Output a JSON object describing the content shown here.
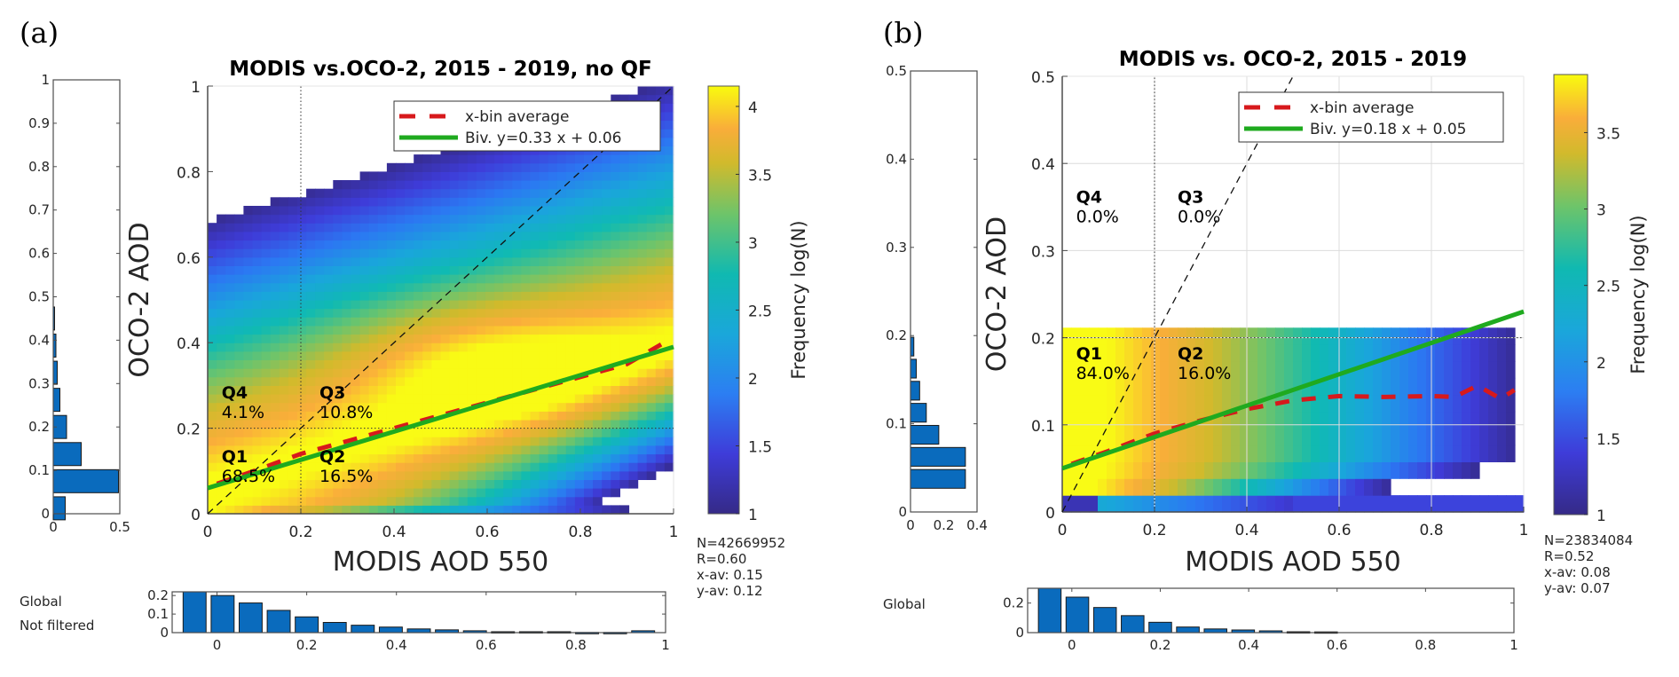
{
  "chart_data": [
    {
      "panel": "(a)",
      "type": "heatmap",
      "title": "MODIS vs.OCO-2, 2015 - 2019, no QF",
      "xlabel": "MODIS AOD 550",
      "ylabel": "OCO-2 AOD",
      "xlim": [
        0,
        1
      ],
      "ylim": [
        0,
        1
      ],
      "xticks": [
        "0",
        "0.2",
        "0.4",
        "0.6",
        "0.8",
        "1"
      ],
      "yticks": [
        "0",
        "0.2",
        "0.4",
        "0.6",
        "0.8",
        "1"
      ],
      "grid": false,
      "colorbar": {
        "label": "Frequency log(N)",
        "range": [
          1,
          4.15
        ],
        "ticks": [
          "1",
          "1.5",
          "2",
          "2.5",
          "3",
          "3.5",
          "4"
        ]
      },
      "legend": {
        "placement": "top-right",
        "entries": [
          {
            "label": "x-bin average",
            "style": "dashed",
            "color": "#d7191c"
          },
          {
            "label": "Biv. y=0.33 x + 0.06",
            "style": "solid",
            "color": "#1faa1f"
          }
        ]
      },
      "fit_line": {
        "slope": 0.33,
        "intercept": 0.06
      },
      "xbin_average": {
        "x": [
          0.02,
          0.1,
          0.2,
          0.3,
          0.4,
          0.5,
          0.6,
          0.7,
          0.8,
          0.9,
          0.98
        ],
        "y": [
          0.07,
          0.1,
          0.14,
          0.17,
          0.2,
          0.23,
          0.26,
          0.29,
          0.32,
          0.35,
          0.4
        ]
      },
      "one_to_one_line": true,
      "threshold": 0.2,
      "quadrants": [
        {
          "name": "Q4",
          "value": "4.1%"
        },
        {
          "name": "Q3",
          "value": "10.8%"
        },
        {
          "name": "Q1",
          "value": "68.5%"
        },
        {
          "name": "Q2",
          "value": "16.5%"
        }
      ],
      "stats": [
        "N=42669952",
        "R=0.60",
        "x-av: 0.15",
        "y-av: 0.12"
      ],
      "left_histogram": {
        "xlim": [
          0,
          0.5
        ],
        "ylim": [
          0,
          1
        ],
        "xticks": [
          "0",
          "0.5"
        ],
        "yticks": [
          "0",
          "0.1",
          "0.2",
          "0.3",
          "0.4",
          "0.5",
          "0.6",
          "0.7",
          "0.8",
          "0.9",
          "1"
        ],
        "bins": [
          0.0125,
          0.075,
          0.1375,
          0.2,
          0.2625,
          0.325,
          0.3875,
          0.45
        ],
        "values": [
          0.09,
          0.49,
          0.21,
          0.1,
          0.05,
          0.03,
          0.02,
          0.005
        ]
      },
      "bottom_histogram": {
        "xlim": [
          -0.1,
          1
        ],
        "ylim": [
          0,
          0.22
        ],
        "xticks": [
          "0",
          "0.2",
          "0.4",
          "0.6",
          "0.8",
          "1"
        ],
        "yticks": [
          "0",
          "0.1",
          "0.2"
        ],
        "bins": [
          -0.05,
          0.0125,
          0.075,
          0.1375,
          0.2,
          0.2625,
          0.325,
          0.3875,
          0.45,
          0.5125,
          0.575,
          0.6375,
          0.7,
          0.7625,
          0.825,
          0.8875,
          0.95
        ],
        "values": [
          0.22,
          0.2,
          0.16,
          0.12,
          0.085,
          0.055,
          0.04,
          0.03,
          0.02,
          0.015,
          0.01,
          0.005,
          0.005,
          0.005,
          0.001,
          0.001,
          0.01
        ]
      },
      "region_labels": [
        "Global",
        "Not filtered"
      ]
    },
    {
      "panel": "(b)",
      "type": "heatmap",
      "title": "MODIS vs. OCO-2, 2015 - 2019",
      "xlabel": "MODIS AOD 550",
      "ylabel": "OCO-2 AOD",
      "xlim": [
        0,
        1
      ],
      "ylim": [
        0,
        0.5
      ],
      "xticks": [
        "0",
        "0.2",
        "0.4",
        "0.6",
        "0.8",
        "1"
      ],
      "yticks": [
        "0",
        "0.1",
        "0.2",
        "0.3",
        "0.4",
        "0.5"
      ],
      "grid": true,
      "colorbar": {
        "label": "Frequency log(N)",
        "range": [
          1,
          3.88
        ],
        "ticks": [
          "1",
          "1.5",
          "2",
          "2.5",
          "3",
          "3.5"
        ]
      },
      "legend": {
        "placement": "top-right",
        "entries": [
          {
            "label": "x-bin average",
            "style": "dashed",
            "color": "#d7191c"
          },
          {
            "label": "Biv. y=0.18 x + 0.05",
            "style": "solid",
            "color": "#1faa1f"
          }
        ]
      },
      "fit_line": {
        "slope": 0.18,
        "intercept": 0.05
      },
      "xbin_average": {
        "x": [
          0.02,
          0.1,
          0.2,
          0.3,
          0.4,
          0.5,
          0.6,
          0.7,
          0.8,
          0.85,
          0.9,
          0.95,
          0.98
        ],
        "y": [
          0.055,
          0.07,
          0.09,
          0.105,
          0.118,
          0.128,
          0.133,
          0.132,
          0.133,
          0.132,
          0.145,
          0.13,
          0.14
        ]
      },
      "one_to_one_line": true,
      "threshold": 0.2,
      "quadrants": [
        {
          "name": "Q4",
          "value": "0.0%"
        },
        {
          "name": "Q3",
          "value": "0.0%"
        },
        {
          "name": "Q1",
          "value": "84.0%"
        },
        {
          "name": "Q2",
          "value": "16.0%"
        }
      ],
      "stats": [
        "N=23834084",
        "R=0.52",
        "x-av: 0.08",
        "y-av: 0.07"
      ],
      "left_histogram": {
        "xlim": [
          0,
          0.4
        ],
        "ylim": [
          0,
          0.5
        ],
        "xticks": [
          "0",
          "0.2",
          "0.4"
        ],
        "yticks": [
          "0",
          "0.1",
          "0.2",
          "0.3",
          "0.4",
          "0.5"
        ],
        "bins": [
          0.0125,
          0.0375,
          0.0625,
          0.0875,
          0.1125,
          0.1375,
          0.1625,
          0.1875
        ],
        "values": [
          0.0,
          0.33,
          0.33,
          0.17,
          0.095,
          0.055,
          0.035,
          0.02
        ]
      },
      "bottom_histogram": {
        "xlim": [
          -0.1,
          1
        ],
        "ylim": [
          0,
          0.3
        ],
        "xticks": [
          "0",
          "0.2",
          "0.4",
          "0.6",
          "0.8",
          "1"
        ],
        "yticks": [
          "0",
          "0.2"
        ],
        "bins": [
          -0.05,
          0.0125,
          0.075,
          0.1375,
          0.2,
          0.2625,
          0.325,
          0.3875,
          0.45,
          0.5125,
          0.575
        ],
        "values": [
          0.3,
          0.24,
          0.17,
          0.115,
          0.07,
          0.038,
          0.025,
          0.018,
          0.012,
          0.006,
          0.005
        ]
      },
      "region_labels": [
        "Global"
      ]
    }
  ]
}
